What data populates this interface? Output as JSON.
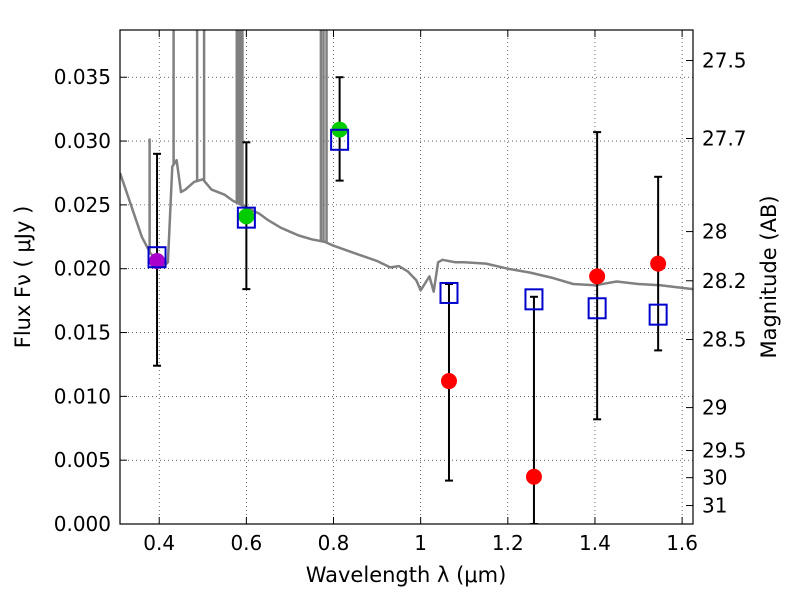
{
  "chart_data": {
    "type": "scatter",
    "xlabel": "Wavelength  λ (μm)",
    "ylabel_left": "Flux  Fν  ( μJy )",
    "ylabel_right": "Magnitude (AB)",
    "xlim": [
      0.31,
      1.625
    ],
    "ylim": [
      0.0,
      0.0387
    ],
    "x_ticks": [
      0.4,
      0.6,
      0.8,
      1.0,
      1.2,
      1.4,
      1.6
    ],
    "x_tick_labels": [
      "0.4",
      "0.6",
      "0.8",
      "1",
      "1.2",
      "1.4",
      "1.6"
    ],
    "y_ticks": [
      0.0,
      0.005,
      0.01,
      0.015,
      0.02,
      0.025,
      0.03,
      0.035
    ],
    "y_tick_labels": [
      "0.000",
      "0.005",
      "0.010",
      "0.015",
      "0.020",
      "0.025",
      "0.030",
      "0.035"
    ],
    "right_ticks": [
      {
        "label": "27.5",
        "mag": 27.5
      },
      {
        "label": "27.7",
        "mag": 27.7
      },
      {
        "label": "28",
        "mag": 28.0
      },
      {
        "label": "28.2",
        "mag": 28.2
      },
      {
        "label": "28.5",
        "mag": 28.5
      },
      {
        "label": "29",
        "mag": 29.0
      },
      {
        "label": "29.5",
        "mag": 29.5
      },
      {
        "label": "30",
        "mag": 30.0
      },
      {
        "label": "31",
        "mag": 31.0
      }
    ],
    "grid": true,
    "colors": {
      "model": "#808080",
      "observed": "#ff0000",
      "observed_alt": "#00cc00",
      "observed_mix": "#aa00cc",
      "model_phot": "#0000cc",
      "errorbar": "#000000"
    },
    "model_spectrum": {
      "x": [
        0.31,
        0.32,
        0.34,
        0.36,
        0.38,
        0.4,
        0.41,
        0.42,
        0.43,
        0.44,
        0.45,
        0.46,
        0.48,
        0.5,
        0.52,
        0.55,
        0.57,
        0.6,
        0.63,
        0.65,
        0.68,
        0.7,
        0.72,
        0.75,
        0.78,
        0.8,
        0.85,
        0.9,
        0.93,
        0.95,
        0.97,
        0.99,
        1.0,
        1.02,
        1.03,
        1.04,
        1.05,
        1.08,
        1.1,
        1.15,
        1.2,
        1.25,
        1.3,
        1.35,
        1.4,
        1.45,
        1.5,
        1.55,
        1.6,
        1.625
      ],
      "y": [
        0.0275,
        0.0265,
        0.0245,
        0.0225,
        0.0212,
        0.0205,
        0.0202,
        0.0205,
        0.028,
        0.0285,
        0.026,
        0.0262,
        0.0268,
        0.027,
        0.0262,
        0.0258,
        0.0253,
        0.0248,
        0.0243,
        0.0238,
        0.0232,
        0.0229,
        0.0226,
        0.0223,
        0.0221,
        0.0218,
        0.0212,
        0.0206,
        0.0201,
        0.0202,
        0.0198,
        0.0191,
        0.0183,
        0.0194,
        0.0182,
        0.0205,
        0.0207,
        0.0205,
        0.0205,
        0.0204,
        0.02,
        0.0197,
        0.0193,
        0.0188,
        0.0187,
        0.019,
        0.0188,
        0.0187,
        0.0185,
        0.0184
      ]
    },
    "emission_lines": [
      {
        "x": 0.378,
        "peak": 0.0302
      },
      {
        "x": 0.433,
        "peak": 0.0387
      },
      {
        "x": 0.487,
        "peak": 0.0387
      },
      {
        "x": 0.503,
        "peak": 0.0387
      },
      {
        "x": 0.578,
        "peak": 0.0387
      },
      {
        "x": 0.583,
        "peak": 0.0387
      },
      {
        "x": 0.587,
        "peak": 0.0387
      },
      {
        "x": 0.591,
        "peak": 0.0387
      },
      {
        "x": 0.771,
        "peak": 0.0387
      },
      {
        "x": 0.777,
        "peak": 0.0387
      },
      {
        "x": 0.784,
        "peak": 0.0387
      }
    ],
    "observed_points": [
      {
        "x": 0.395,
        "y": 0.0206,
        "color": "observed_mix"
      },
      {
        "x": 0.6,
        "y": 0.0241,
        "color": "observed_alt"
      },
      {
        "x": 0.814,
        "y": 0.0309,
        "color": "observed_alt"
      },
      {
        "x": 1.065,
        "y": 0.0112,
        "color": "observed"
      },
      {
        "x": 1.26,
        "y": 0.0037,
        "color": "observed"
      },
      {
        "x": 1.405,
        "y": 0.0194,
        "color": "observed"
      },
      {
        "x": 1.545,
        "y": 0.0204,
        "color": "observed"
      }
    ],
    "error_bars": [
      {
        "x": 0.395,
        "low": 0.0124,
        "high": 0.029
      },
      {
        "x": 0.6,
        "low": 0.0184,
        "high": 0.0299
      },
      {
        "x": 0.814,
        "low": 0.0269,
        "high": 0.035
      },
      {
        "x": 1.065,
        "low": 0.0034,
        "high": 0.0188
      },
      {
        "x": 1.26,
        "low": 0.0,
        "high": 0.0178
      },
      {
        "x": 1.405,
        "low": 0.0082,
        "high": 0.0307
      },
      {
        "x": 1.545,
        "low": 0.0136,
        "high": 0.0272
      }
    ],
    "model_photometry": [
      {
        "x": 0.395,
        "y": 0.0209
      },
      {
        "x": 0.6,
        "y": 0.024
      },
      {
        "x": 0.814,
        "y": 0.0301
      },
      {
        "x": 1.065,
        "y": 0.0181
      },
      {
        "x": 1.26,
        "y": 0.0176
      },
      {
        "x": 1.405,
        "y": 0.0169
      },
      {
        "x": 1.545,
        "y": 0.0164
      }
    ]
  }
}
